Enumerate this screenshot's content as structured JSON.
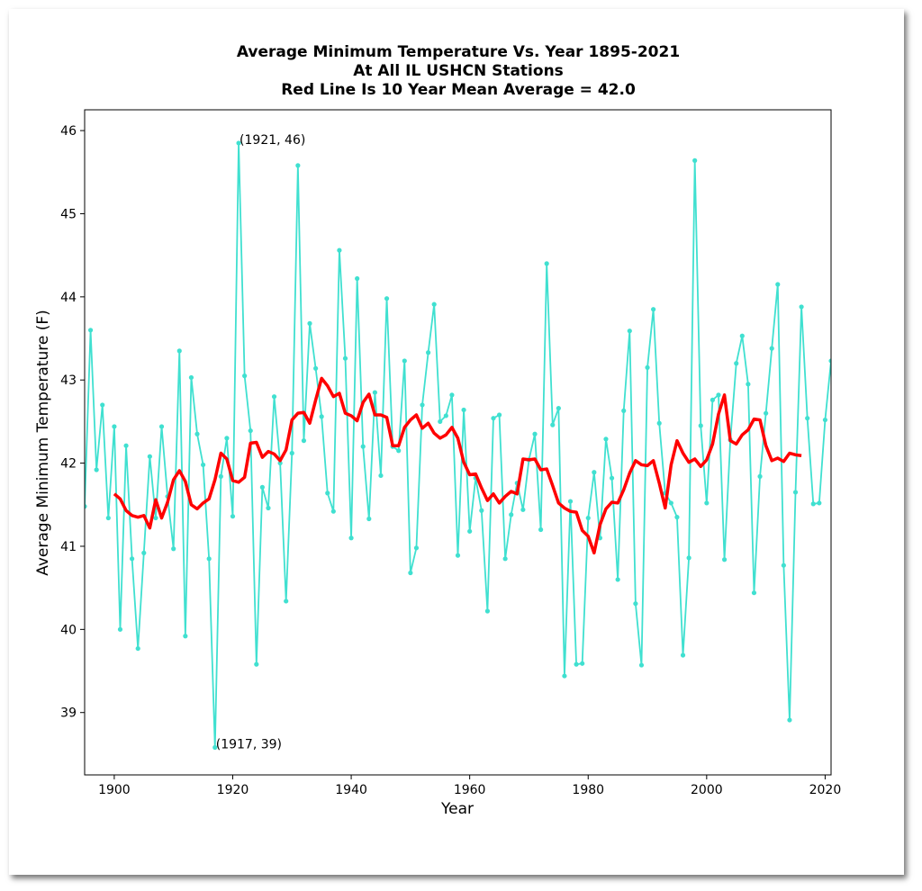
{
  "chart_data": {
    "type": "line",
    "title_lines": [
      "Average Minimum Temperature Vs. Year 1895-2021",
      "At All IL USHCN Stations",
      "Red Line Is 10 Year Mean  Average = 42.0"
    ],
    "xlabel": "Year",
    "ylabel": "Average Minimum Temperature (F)",
    "xlim": [
      1895,
      2021
    ],
    "ylim": [
      38.25,
      46.25
    ],
    "xticks": [
      1900,
      1920,
      1940,
      1960,
      1980,
      2000,
      2020
    ],
    "yticks": [
      39,
      40,
      41,
      42,
      43,
      44,
      45,
      46
    ],
    "grid": false,
    "colors": {
      "raw": "#40e0d0",
      "mean": "#ff0000"
    },
    "annotations": [
      {
        "x": 1921,
        "y": 45.85,
        "text": "(1921, 46)"
      },
      {
        "x": 1917,
        "y": 38.58,
        "text": "(1917, 39)"
      }
    ],
    "series": [
      {
        "x_start": 1895,
        "values": [
          41.48,
          43.6,
          41.92,
          42.7,
          41.34,
          42.44,
          40.0,
          42.21,
          40.85,
          39.77,
          40.92,
          42.08,
          41.34,
          42.44,
          41.6,
          40.97,
          43.35,
          39.92,
          43.03,
          42.35,
          41.98,
          40.85,
          38.58,
          41.84,
          42.3,
          41.36,
          45.85,
          43.05,
          42.39,
          39.58,
          41.71,
          41.46,
          42.8,
          42.0,
          40.34,
          42.12,
          45.58,
          42.27,
          43.68,
          43.14,
          42.56,
          41.64,
          41.42,
          44.56,
          43.26,
          41.1,
          44.22,
          42.2,
          41.33,
          42.85,
          41.85,
          43.98,
          42.2,
          42.15,
          43.23,
          40.68,
          40.98,
          42.7,
          43.33,
          43.91,
          42.5,
          42.57,
          42.82,
          40.89,
          42.64,
          41.18,
          41.82,
          41.43,
          40.22,
          42.54,
          42.58,
          40.85,
          41.38,
          41.76,
          41.44,
          42.04,
          42.35,
          41.2,
          44.4,
          42.46,
          42.66,
          39.44,
          41.54,
          39.58,
          39.59,
          41.34,
          41.89,
          41.1,
          42.29,
          41.82,
          40.6,
          42.63,
          43.59,
          40.31,
          39.57,
          43.15,
          43.85,
          42.48,
          41.64,
          41.52,
          41.35,
          39.69,
          40.86,
          45.64,
          42.45,
          41.52,
          42.76,
          42.82,
          40.84,
          42.28,
          43.2,
          43.53,
          42.95,
          40.44,
          41.84,
          42.6,
          43.38,
          44.15,
          40.77,
          38.91,
          41.65,
          43.88,
          42.54,
          41.51,
          41.52,
          42.52,
          43.23
        ]
      },
      {
        "x_start": 1900,
        "values": [
          41.63,
          41.57,
          41.43,
          41.37,
          41.35,
          41.37,
          41.22,
          41.56,
          41.34,
          41.53,
          41.8,
          41.91,
          41.78,
          41.5,
          41.45,
          41.52,
          41.57,
          41.8,
          42.12,
          42.05,
          41.79,
          41.77,
          41.83,
          42.24,
          42.25,
          42.07,
          42.14,
          42.11,
          42.03,
          42.16,
          42.52,
          42.6,
          42.61,
          42.48,
          42.76,
          43.02,
          42.93,
          42.8,
          42.84,
          42.6,
          42.57,
          42.51,
          42.73,
          42.83,
          42.58,
          42.58,
          42.55,
          42.21,
          42.21,
          42.43,
          42.52,
          42.58,
          42.42,
          42.48,
          42.36,
          42.3,
          42.34,
          42.43,
          42.3,
          42.01,
          41.86,
          41.87,
          41.7,
          41.55,
          41.63,
          41.52,
          41.6,
          41.66,
          41.63,
          42.05,
          42.04,
          42.05,
          41.92,
          41.93,
          41.73,
          41.52,
          41.46,
          41.42,
          41.41,
          41.19,
          41.12,
          40.92,
          41.26,
          41.45,
          41.53,
          41.52,
          41.68,
          41.88,
          42.03,
          41.98,
          41.97,
          42.03,
          41.76,
          41.46,
          41.98,
          42.27,
          42.12,
          42.01,
          42.05,
          41.96,
          42.04,
          42.23,
          42.59,
          42.82,
          42.27,
          42.23,
          42.34,
          42.4,
          42.53,
          42.52,
          42.21,
          42.03,
          42.06,
          42.02,
          42.12,
          42.1,
          42.09
        ]
      }
    ]
  }
}
